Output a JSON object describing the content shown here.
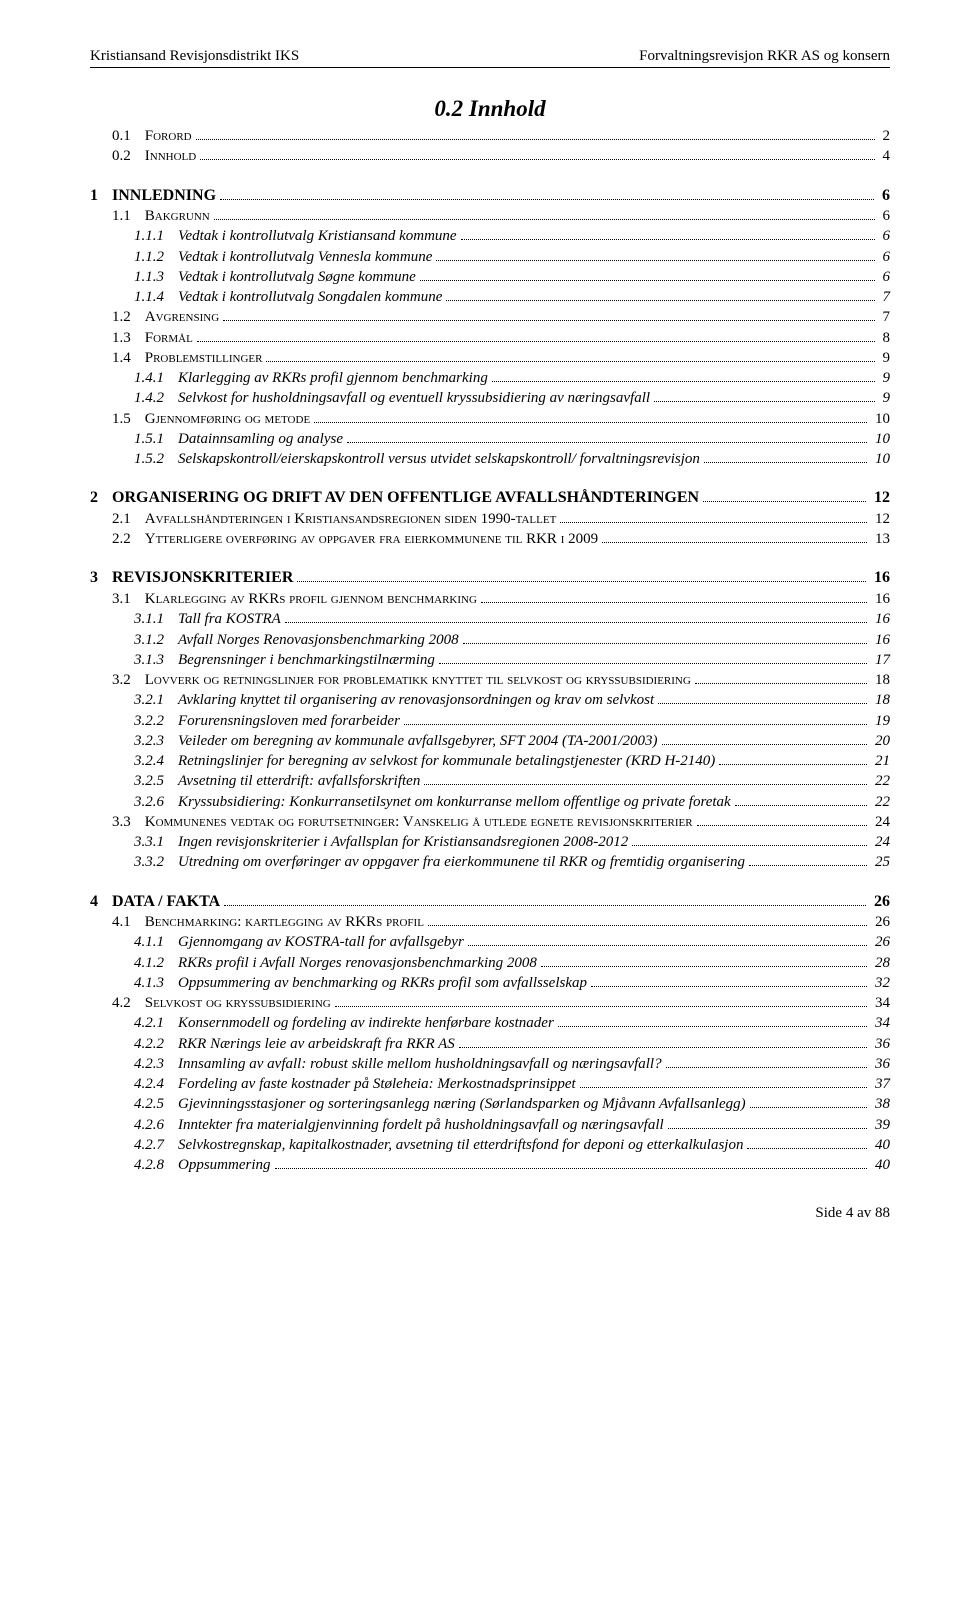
{
  "header": {
    "left": "Kristiansand Revisjonsdistrikt IKS",
    "right": "Forvaltningsrevisjon RKR AS og konsern"
  },
  "title": "0.2 Innhold",
  "toc": [
    {
      "level": 2,
      "num": "0.1",
      "label": "Forord",
      "page": "2"
    },
    {
      "level": 2,
      "num": "0.2",
      "label": "Innhold",
      "page": "4"
    },
    {
      "gap": true
    },
    {
      "level": 1,
      "num": "1",
      "label": "INNLEDNING",
      "page": "6"
    },
    {
      "level": 2,
      "num": "1.1",
      "label": "Bakgrunn",
      "page": "6"
    },
    {
      "level": 3,
      "num": "1.1.1",
      "label": "Vedtak i kontrollutvalg Kristiansand kommune",
      "page": "6"
    },
    {
      "level": 3,
      "num": "1.1.2",
      "label": "Vedtak i kontrollutvalg Vennesla kommune",
      "page": "6"
    },
    {
      "level": 3,
      "num": "1.1.3",
      "label": "Vedtak i kontrollutvalg Søgne kommune",
      "page": "6"
    },
    {
      "level": 3,
      "num": "1.1.4",
      "label": "Vedtak i kontrollutvalg Songdalen kommune",
      "page": "7"
    },
    {
      "level": 2,
      "num": "1.2",
      "label": "Avgrensing",
      "page": "7"
    },
    {
      "level": 2,
      "num": "1.3",
      "label": "Formål",
      "page": "8"
    },
    {
      "level": 2,
      "num": "1.4",
      "label": "Problemstillinger",
      "page": "9"
    },
    {
      "level": 3,
      "num": "1.4.1",
      "label": "Klarlegging av RKRs profil gjennom benchmarking",
      "page": "9"
    },
    {
      "level": 3,
      "num": "1.4.2",
      "label": "Selvkost for husholdningsavfall og eventuell kryssubsidiering av næringsavfall",
      "page": "9"
    },
    {
      "level": 2,
      "num": "1.5",
      "label": "Gjennomføring og metode",
      "page": "10"
    },
    {
      "level": 3,
      "num": "1.5.1",
      "label": "Datainnsamling og analyse",
      "page": "10"
    },
    {
      "level": 3,
      "num": "1.5.2",
      "label": "Selskapskontroll/eierskapskontroll versus utvidet selskapskontroll/ forvaltningsrevisjon",
      "page": "10"
    },
    {
      "gap": true
    },
    {
      "level": 1,
      "num": "2",
      "label": "ORGANISERING OG DRIFT AV DEN OFFENTLIGE AVFALLSHÅNDTERINGEN",
      "page": "12"
    },
    {
      "level": 2,
      "num": "2.1",
      "label": "Avfallshåndteringen i Kristiansandsregionen siden 1990-tallet",
      "page": "12"
    },
    {
      "level": 2,
      "num": "2.2",
      "label": "Ytterligere overføring av oppgaver fra eierkommunene til RKR i 2009",
      "page": "13"
    },
    {
      "gap": true
    },
    {
      "level": 1,
      "num": "3",
      "label": "REVISJONSKRITERIER",
      "page": "16"
    },
    {
      "level": 2,
      "num": "3.1",
      "label": "Klarlegging av RKRs profil gjennom benchmarking",
      "page": "16"
    },
    {
      "level": 3,
      "num": "3.1.1",
      "label": "Tall fra KOSTRA",
      "page": "16"
    },
    {
      "level": 3,
      "num": "3.1.2",
      "label": "Avfall Norges Renovasjonsbenchmarking 2008",
      "page": "16"
    },
    {
      "level": 3,
      "num": "3.1.3",
      "label": "Begrensninger i benchmarkingstilnærming",
      "page": "17"
    },
    {
      "level": 2,
      "num": "3.2",
      "label": "Lovverk og retningslinjer for problematikk knyttet til selvkost og kryssubsidiering",
      "page": "18"
    },
    {
      "level": 3,
      "num": "3.2.1",
      "label": "Avklaring knyttet til organisering av renovasjonsordningen og krav om selvkost",
      "page": "18"
    },
    {
      "level": 3,
      "num": "3.2.2",
      "label": "Forurensningsloven med forarbeider",
      "page": "19"
    },
    {
      "level": 3,
      "num": "3.2.3",
      "label": "Veileder om beregning av kommunale avfallsgebyrer, SFT 2004 (TA-2001/2003)",
      "page": "20"
    },
    {
      "level": 3,
      "num": "3.2.4",
      "label": "Retningslinjer for beregning av selvkost for kommunale betalingstjenester (KRD H-2140)",
      "page": "21"
    },
    {
      "level": 3,
      "num": "3.2.5",
      "label": "Avsetning til etterdrift: avfallsforskriften",
      "page": "22"
    },
    {
      "level": 3,
      "num": "3.2.6",
      "label": "Kryssubsidiering: Konkurransetilsynet om konkurranse mellom offentlige og private foretak",
      "page": "22"
    },
    {
      "level": 2,
      "num": "3.3",
      "label": "Kommunenes vedtak og forutsetninger: Vanskelig å utlede egnete revisjonskriterier",
      "page": "24"
    },
    {
      "level": 3,
      "num": "3.3.1",
      "label": "Ingen revisjonskriterier i Avfallsplan for Kristiansandsregionen 2008-2012",
      "page": "24"
    },
    {
      "level": 3,
      "num": "3.3.2",
      "label": "Utredning om overføringer av oppgaver fra eierkommunene til RKR og fremtidig organisering",
      "page": "25"
    },
    {
      "gap": true
    },
    {
      "level": 1,
      "num": "4",
      "label": "DATA / FAKTA",
      "page": "26"
    },
    {
      "level": 2,
      "num": "4.1",
      "label": "Benchmarking: kartlegging av RKRs profil",
      "page": "26"
    },
    {
      "level": 3,
      "num": "4.1.1",
      "label": "Gjennomgang av KOSTRA-tall for avfallsgebyr",
      "page": "26"
    },
    {
      "level": 3,
      "num": "4.1.2",
      "label": "RKRs profil i Avfall Norges renovasjonsbenchmarking 2008",
      "page": "28"
    },
    {
      "level": 3,
      "num": "4.1.3",
      "label": "Oppsummering av benchmarking og RKRs profil som avfallsselskap",
      "page": "32"
    },
    {
      "level": 2,
      "num": "4.2",
      "label": "Selvkost og kryssubsidiering",
      "page": "34"
    },
    {
      "level": 3,
      "num": "4.2.1",
      "label": "Konsernmodell og fordeling av indirekte henførbare kostnader",
      "page": "34"
    },
    {
      "level": 3,
      "num": "4.2.2",
      "label": "RKR Nærings leie av arbeidskraft fra RKR AS",
      "page": "36"
    },
    {
      "level": 3,
      "num": "4.2.3",
      "label": "Innsamling av avfall: robust skille mellom husholdningsavfall og næringsavfall?",
      "page": "36"
    },
    {
      "level": 3,
      "num": "4.2.4",
      "label": "Fordeling av faste kostnader på Støleheia: Merkostnadsprinsippet",
      "page": "37"
    },
    {
      "level": 3,
      "num": "4.2.5",
      "label": "Gjevinningsstasjoner og sorteringsanlegg næring (Sørlandsparken og Mjåvann Avfallsanlegg)",
      "page": "38"
    },
    {
      "level": 3,
      "num": "4.2.6",
      "label": "Inntekter fra materialgjenvinning fordelt på husholdningsavfall og næringsavfall",
      "page": "39"
    },
    {
      "level": 3,
      "num": "4.2.7",
      "label": "Selvkostregnskap, kapitalkostnader, avsetning til etterdriftsfond for deponi og etterkalkulasjon",
      "page": "40"
    },
    {
      "level": 3,
      "num": "4.2.8",
      "label": "Oppsummering",
      "page": "40"
    }
  ],
  "footer": "Side 4 av 88"
}
